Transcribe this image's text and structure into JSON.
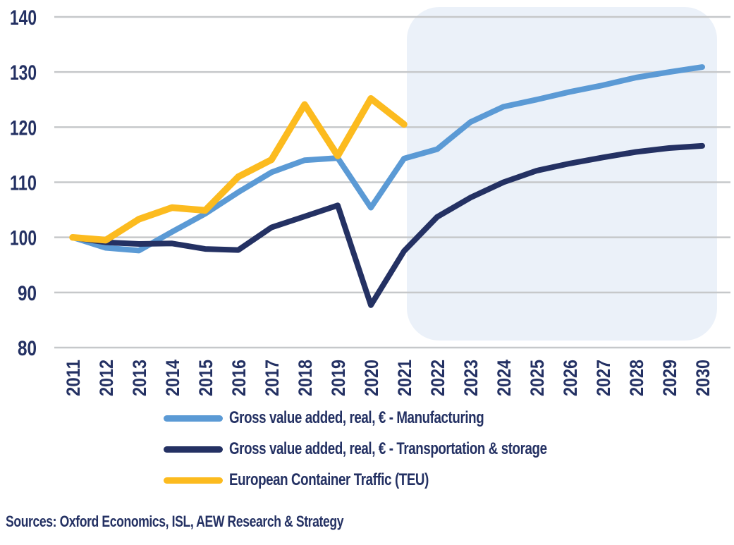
{
  "colors": {
    "manufacturing": "#5B9AD5",
    "transportation": "#243163",
    "container_traffic": "#FCBB1F",
    "gridline": "#C6C8CA",
    "forecast_band": "#EBF1F9",
    "text": "#243163",
    "background": "#FFFFFF"
  },
  "chart_data": {
    "type": "line",
    "x": [
      2011,
      2012,
      2013,
      2014,
      2015,
      2016,
      2017,
      2018,
      2019,
      2020,
      2021,
      2022,
      2023,
      2024,
      2025,
      2026,
      2027,
      2028,
      2029,
      2030
    ],
    "ylim": [
      80,
      140
    ],
    "ytick_step": 10,
    "grid": true,
    "legend_position": "bottom",
    "forecast_band": {
      "from_year": 2021,
      "to_year": 2030
    },
    "series": [
      {
        "name": "Gross value added, real, € - Manufacturing",
        "color_key": "manufacturing",
        "values": [
          100,
          98.1,
          97.6,
          101.0,
          104.3,
          108.2,
          111.8,
          114.0,
          114.4,
          105.4,
          114.3,
          116.0,
          120.9,
          123.7,
          125.0,
          126.4,
          127.6,
          129.0,
          130.0,
          130.9
        ]
      },
      {
        "name": "Gross value added, real, € - Transportation & storage",
        "color_key": "transportation",
        "values": [
          100,
          99.1,
          98.8,
          98.9,
          97.9,
          97.7,
          101.8,
          103.8,
          105.8,
          87.7,
          97.5,
          103.7,
          107.2,
          110.0,
          112.1,
          113.4,
          114.5,
          115.5,
          116.2,
          116.6
        ]
      },
      {
        "name": "European Container Traffic (TEU)",
        "color_key": "container_traffic",
        "values": [
          100,
          99.5,
          103.3,
          105.4,
          104.9,
          111.0,
          114.1,
          124.1,
          114.8,
          125.2,
          120.5
        ]
      }
    ]
  },
  "source_note": "Sources: Oxford Economics, ISL, AEW Research & Strategy"
}
